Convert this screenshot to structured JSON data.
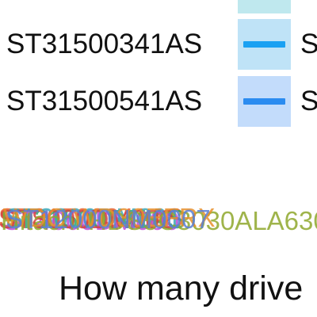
{
  "chart_data": {
    "type": "line",
    "title": "How many drive",
    "legend": {
      "placement": "top",
      "entries": [
        {
          "name": "ST31500341AS",
          "color": "#1aa1f2",
          "swatch_fill": "#bfe3f7",
          "trail_text": "S"
        },
        {
          "name": "ST31500541AS",
          "color": "#2b8cf0",
          "swatch_fill": "#c3dcfb",
          "trail_text": "S"
        }
      ],
      "clipped_entry_swatch_fill": "#bfe8ee"
    },
    "overlapping_tick_labels": {
      "texts": [
        "ST31500341AS",
        "ST31500541AS",
        "ST4000DM000",
        "ST3000DM001",
        "ST8000DM002",
        "Hitachi HDS5C3030ALA630",
        "WDC WD30EFRX",
        "ST12000NM0007"
      ],
      "colors": [
        "#e8602c",
        "#2fa86b",
        "#c04ad6",
        "#3aa7b8",
        "#d8413f",
        "#8fa82c",
        "#e8902c",
        "#5a7fd6"
      ]
    }
  }
}
